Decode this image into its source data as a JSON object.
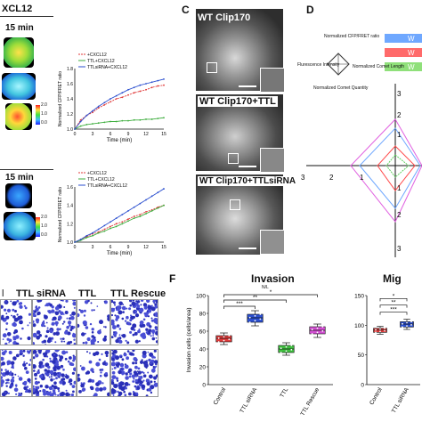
{
  "panelA": {
    "header": "XCL12",
    "time_label_top": "15 min",
    "time_label_bottom": "15 min",
    "colorbar_top": [
      "2.0",
      "1.0",
      "0.0"
    ],
    "colorbar_bottom": [
      "2.0",
      "1.0",
      "0.0"
    ]
  },
  "chart_top": {
    "ylabel": "Normalized CFP/FRET ratio",
    "xlabel": "Time (min)",
    "legend": [
      "+CXCL12",
      "TTL+CXCL12",
      "TTLsiRNA+CXCL12"
    ],
    "yticks": [
      "1.0",
      "1.2",
      "1.4",
      "1.6",
      "1.8"
    ],
    "xticks": [
      "0",
      "3",
      "6",
      "9",
      "12",
      "15"
    ]
  },
  "chart_bottom": {
    "ylabel": "Normalized CFP/FRET ratio",
    "xlabel": "Time (min)",
    "legend": [
      "+CXCL12",
      "TTL+CXCL12",
      "TTLsiRNA+CXCL12"
    ],
    "yticks": [
      "1.0",
      "1.2",
      "1.4",
      "1.6"
    ],
    "xticks": [
      "0",
      "3",
      "6",
      "9",
      "12",
      "15"
    ]
  },
  "panelC": {
    "letter": "C",
    "titles": [
      "WT Clip170",
      "WT Clip170+TTL",
      "WT Clip170+TTLsiRNA"
    ]
  },
  "panelD": {
    "letter": "D",
    "radar_labels": [
      "Normalized CFP/FRET ratio",
      "Flurescence Intensity",
      "Normalized Comet Length",
      "Normalized Comet Quantity"
    ],
    "legend": [
      "W",
      "W",
      "W"
    ],
    "axis_numbers": [
      "3",
      "2",
      "1",
      "3",
      "2",
      "1",
      "1",
      "2",
      "3"
    ]
  },
  "panelE": {
    "col_labels": [
      "l",
      "TTL siRNA",
      "TTL",
      "TTL Rescue"
    ]
  },
  "panelF": {
    "letter": "F",
    "title": "Invasion",
    "subtitle": "N/L",
    "ylabel": "Invasion cells (cells/area)",
    "yticks": [
      "0",
      "20",
      "40",
      "60",
      "80",
      "100"
    ],
    "categories": [
      "Control",
      "TTL siRNA",
      "TTL",
      "TTL Rescue"
    ],
    "sig": [
      "***",
      "**",
      "*"
    ]
  },
  "panelG": {
    "title": "Mig",
    "sig": [
      "***",
      "**",
      "*"
    ],
    "yticks": [
      "0",
      "50",
      "100",
      "150"
    ],
    "categories": [
      "Control",
      "TTL siRNA"
    ]
  },
  "chart_data": [
    {
      "type": "line",
      "title": "",
      "xlabel": "Time (min)",
      "ylabel": "Normalized CFP/FRET ratio",
      "ylim": [
        1.0,
        1.8
      ],
      "x": [
        0,
        1,
        2,
        3,
        4,
        5,
        6,
        7,
        8,
        9,
        10,
        11,
        12,
        13,
        14,
        15
      ],
      "series": [
        {
          "name": "+CXCL12",
          "color": "#e03a3a",
          "values": [
            1.0,
            1.12,
            1.18,
            1.22,
            1.28,
            1.32,
            1.36,
            1.4,
            1.42,
            1.45,
            1.48,
            1.5,
            1.52,
            1.55,
            1.57,
            1.58
          ]
        },
        {
          "name": "TTL+CXCL12",
          "color": "#3fae3f",
          "values": [
            1.0,
            1.04,
            1.06,
            1.07,
            1.08,
            1.09,
            1.1,
            1.1,
            1.11,
            1.11,
            1.12,
            1.12,
            1.13,
            1.13,
            1.14,
            1.15
          ]
        },
        {
          "name": "TTLsiRNA+CXCL12",
          "color": "#2b4fcf",
          "values": [
            1.0,
            1.1,
            1.18,
            1.24,
            1.3,
            1.35,
            1.4,
            1.44,
            1.48,
            1.52,
            1.55,
            1.58,
            1.6,
            1.62,
            1.64,
            1.66
          ]
        }
      ]
    },
    {
      "type": "line",
      "title": "",
      "xlabel": "Time (min)",
      "ylabel": "Normalized CFP/FRET ratio",
      "ylim": [
        1.0,
        1.6
      ],
      "x": [
        0,
        1,
        2,
        3,
        4,
        5,
        6,
        7,
        8,
        9,
        10,
        11,
        12,
        13,
        14,
        15
      ],
      "series": [
        {
          "name": "+CXCL12",
          "color": "#e03a3a",
          "values": [
            1.0,
            1.03,
            1.06,
            1.09,
            1.11,
            1.14,
            1.17,
            1.2,
            1.22,
            1.25,
            1.28,
            1.3,
            1.33,
            1.35,
            1.38,
            1.4
          ]
        },
        {
          "name": "TTL+CXCL12",
          "color": "#3fae3f",
          "values": [
            1.0,
            1.02,
            1.05,
            1.07,
            1.1,
            1.12,
            1.15,
            1.17,
            1.2,
            1.23,
            1.26,
            1.28,
            1.31,
            1.34,
            1.37,
            1.4
          ]
        },
        {
          "name": "TTLsiRNA+CXCL12",
          "color": "#2b4fcf",
          "values": [
            1.0,
            1.03,
            1.07,
            1.1,
            1.14,
            1.18,
            1.22,
            1.26,
            1.3,
            1.34,
            1.38,
            1.42,
            1.46,
            1.5,
            1.54,
            1.58
          ]
        }
      ]
    },
    {
      "type": "box",
      "title": "Invasion",
      "ylabel": "Invasion cells (cells/area)",
      "ylim": [
        0,
        100
      ],
      "categories": [
        "Control",
        "TTL siRNA",
        "TTL",
        "TTL Rescue"
      ],
      "colors": [
        "#e03a3a",
        "#2b4fcf",
        "#3fbf3f",
        "#d34fd3"
      ],
      "boxes": [
        {
          "min": 45,
          "q1": 48,
          "median": 52,
          "q3": 55,
          "max": 58
        },
        {
          "min": 66,
          "q1": 70,
          "median": 75,
          "q3": 79,
          "max": 83
        },
        {
          "min": 33,
          "q1": 36,
          "median": 40,
          "q3": 44,
          "max": 47
        },
        {
          "min": 53,
          "q1": 57,
          "median": 61,
          "q3": 65,
          "max": 68
        }
      ]
    },
    {
      "type": "box",
      "title": "Mig",
      "ylim": [
        0,
        150
      ],
      "categories": [
        "Control",
        "TTL siRNA"
      ],
      "colors": [
        "#e03a3a",
        "#2b4fcf"
      ],
      "boxes": [
        {
          "min": 85,
          "q1": 88,
          "median": 92,
          "q3": 95,
          "max": 98
        },
        {
          "min": 93,
          "q1": 97,
          "median": 102,
          "q3": 106,
          "max": 110
        }
      ]
    }
  ]
}
